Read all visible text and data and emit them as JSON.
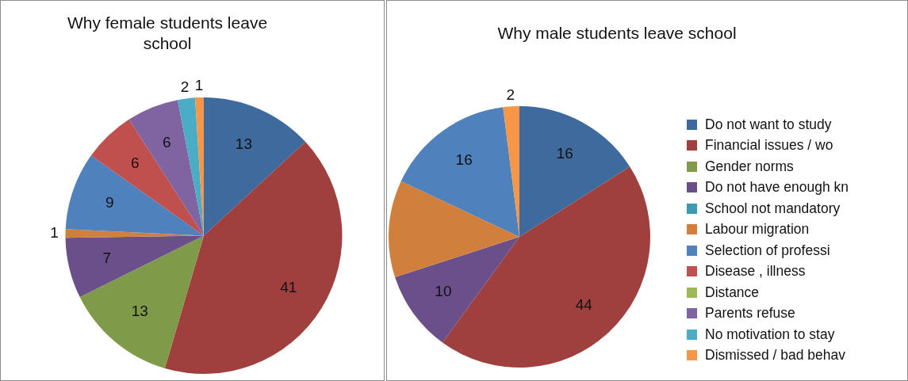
{
  "chart_data": [
    {
      "type": "pie",
      "title": "Why female students leave school",
      "categories": [
        null,
        null,
        null,
        null,
        null,
        null,
        null,
        null,
        null,
        null,
        null,
        null
      ],
      "values": [
        13,
        41,
        13,
        7,
        0,
        1,
        9,
        6,
        0,
        6,
        2,
        1
      ],
      "value_labels": [
        "13",
        "41",
        "13",
        "7",
        null,
        "1",
        "9",
        "6",
        null,
        "6",
        "2",
        "1"
      ],
      "colors": [
        "#3f6a9e",
        "#a0403e",
        "#7f9a48",
        "#6a4f8a",
        "#3c9bb0",
        "#d07f3c",
        "#4f81bd",
        "#c0504d",
        "#9bbb59",
        "#8064a2",
        "#4bacc6",
        "#f79646"
      ],
      "legend": false
    },
    {
      "type": "pie",
      "title": "Why male students leave school",
      "categories": [
        "Do not want to study",
        "Financial issues / wo",
        "Gender norms",
        "Do not have enough kn",
        "School not mandatory",
        "Labour migration",
        "Selection of professi",
        "Disease , illness",
        "Distance",
        "Parents refuse",
        "No motivation to stay",
        "Dismissed / bad behav"
      ],
      "values": [
        16,
        44,
        0,
        10,
        0,
        12,
        16,
        0,
        0,
        0,
        0,
        2
      ],
      "value_labels": [
        "16",
        "44",
        null,
        "10",
        null,
        null,
        "16",
        null,
        null,
        null,
        null,
        "2"
      ],
      "colors": [
        "#3f6a9e",
        "#a0403e",
        "#7f9a48",
        "#6a4f8a",
        "#3c9bb0",
        "#d07f3c",
        "#4f81bd",
        "#c0504d",
        "#9bbb59",
        "#8064a2",
        "#4bacc6",
        "#f79646"
      ],
      "legend": "right"
    }
  ]
}
